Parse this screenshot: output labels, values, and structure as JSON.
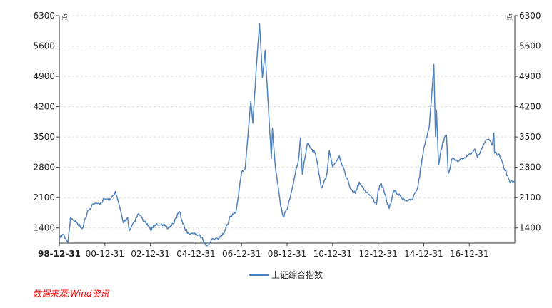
{
  "chart_data": {
    "type": "line",
    "unit_left": "点",
    "unit_right": "点",
    "yticks": [
      1400,
      2100,
      2800,
      3500,
      4200,
      4900,
      5600,
      6300
    ],
    "ylim": [
      1050,
      6300
    ],
    "xlim": [
      "1998-12-31",
      "2018-12-31"
    ],
    "xticks": [
      {
        "date": "1998-12-31",
        "label": "98-12-31",
        "bold": true
      },
      {
        "date": "2000-12-31",
        "label": "00-12-31"
      },
      {
        "date": "2002-12-31",
        "label": "02-12-31"
      },
      {
        "date": "2004-12-31",
        "label": "04-12-31"
      },
      {
        "date": "2006-12-31",
        "label": "06-12-31"
      },
      {
        "date": "2008-12-31",
        "label": "08-12-31"
      },
      {
        "date": "2010-12-31",
        "label": "10-12-31"
      },
      {
        "date": "2012-12-31",
        "label": "12-12-31"
      },
      {
        "date": "2014-12-31",
        "label": "14-12-31"
      },
      {
        "date": "2016-12-31",
        "label": "16-12-31"
      }
    ],
    "grid": "horizontal-dashed",
    "legend_position": "bottom-center",
    "source": "数据来源:Wind资讯",
    "series": [
      {
        "name": "上证综合指数",
        "color": "#4f81bd",
        "points": [
          [
            "1998-12-31",
            1147
          ],
          [
            "1999-02-28",
            1250
          ],
          [
            "1999-04-15",
            1150
          ],
          [
            "1999-05-18",
            1060
          ],
          [
            "1999-06-30",
            1650
          ],
          [
            "1999-09-30",
            1530
          ],
          [
            "1999-12-31",
            1380
          ],
          [
            "2000-03-31",
            1800
          ],
          [
            "2000-06-30",
            1960
          ],
          [
            "2000-09-30",
            1960
          ],
          [
            "2000-12-31",
            2070
          ],
          [
            "2001-03-31",
            2050
          ],
          [
            "2001-06-14",
            2240
          ],
          [
            "2001-08-31",
            1850
          ],
          [
            "2001-10-22",
            1520
          ],
          [
            "2001-12-31",
            1640
          ],
          [
            "2002-01-28",
            1340
          ],
          [
            "2002-03-31",
            1520
          ],
          [
            "2002-06-25",
            1730
          ],
          [
            "2002-09-30",
            1550
          ],
          [
            "2002-12-31",
            1360
          ],
          [
            "2003-03-31",
            1480
          ],
          [
            "2003-06-30",
            1490
          ],
          [
            "2003-09-30",
            1380
          ],
          [
            "2003-12-31",
            1500
          ],
          [
            "2004-04-07",
            1780
          ],
          [
            "2004-06-30",
            1400
          ],
          [
            "2004-09-13",
            1260
          ],
          [
            "2004-12-31",
            1270
          ],
          [
            "2005-03-31",
            1180
          ],
          [
            "2005-06-06",
            998
          ],
          [
            "2005-09-30",
            1150
          ],
          [
            "2005-12-31",
            1160
          ],
          [
            "2006-03-31",
            1300
          ],
          [
            "2006-06-30",
            1670
          ],
          [
            "2006-09-30",
            1750
          ],
          [
            "2006-12-31",
            2675
          ],
          [
            "2007-02-27",
            2770
          ],
          [
            "2007-05-29",
            4330
          ],
          [
            "2007-06-30",
            3820
          ],
          [
            "2007-08-31",
            5220
          ],
          [
            "2007-10-16",
            6124
          ],
          [
            "2007-11-30",
            4870
          ],
          [
            "2008-01-14",
            5500
          ],
          [
            "2008-02-29",
            4350
          ],
          [
            "2008-04-22",
            3000
          ],
          [
            "2008-05-10",
            3700
          ],
          [
            "2008-06-30",
            2740
          ],
          [
            "2008-09-18",
            1900
          ],
          [
            "2008-10-28",
            1664
          ],
          [
            "2008-12-31",
            1820
          ],
          [
            "2009-03-31",
            2370
          ],
          [
            "2009-06-30",
            2960
          ],
          [
            "2009-08-04",
            3478
          ],
          [
            "2009-09-01",
            2640
          ],
          [
            "2009-11-24",
            3360
          ],
          [
            "2009-12-31",
            3277
          ],
          [
            "2010-03-31",
            3110
          ],
          [
            "2010-07-02",
            2320
          ],
          [
            "2010-09-30",
            2650
          ],
          [
            "2010-11-08",
            3186
          ],
          [
            "2010-12-31",
            2808
          ],
          [
            "2011-04-18",
            3067
          ],
          [
            "2011-06-30",
            2760
          ],
          [
            "2011-09-30",
            2360
          ],
          [
            "2011-12-31",
            2199
          ],
          [
            "2012-03-02",
            2460
          ],
          [
            "2012-06-30",
            2225
          ],
          [
            "2012-09-30",
            2086
          ],
          [
            "2012-12-04",
            1950
          ],
          [
            "2012-12-31",
            2269
          ],
          [
            "2013-02-18",
            2430
          ],
          [
            "2013-06-25",
            1850
          ],
          [
            "2013-09-12",
            2270
          ],
          [
            "2013-12-31",
            2116
          ],
          [
            "2014-03-31",
            2030
          ],
          [
            "2014-06-30",
            2048
          ],
          [
            "2014-09-30",
            2364
          ],
          [
            "2014-12-31",
            3234
          ],
          [
            "2015-03-31",
            3748
          ],
          [
            "2015-06-12",
            5178
          ],
          [
            "2015-07-08",
            3507
          ],
          [
            "2015-07-24",
            4124
          ],
          [
            "2015-08-26",
            2850
          ],
          [
            "2015-10-31",
            3382
          ],
          [
            "2015-12-31",
            3539
          ],
          [
            "2016-01-28",
            2655
          ],
          [
            "2016-03-31",
            3003
          ],
          [
            "2016-06-30",
            2930
          ],
          [
            "2016-09-30",
            3005
          ],
          [
            "2016-12-31",
            3104
          ],
          [
            "2017-03-31",
            3223
          ],
          [
            "2017-05-11",
            3022
          ],
          [
            "2017-08-31",
            3360
          ],
          [
            "2017-11-13",
            3447
          ],
          [
            "2017-12-31",
            3307
          ],
          [
            "2018-01-29",
            3587
          ],
          [
            "2018-02-09",
            3129
          ],
          [
            "2018-04-30",
            3082
          ],
          [
            "2018-06-30",
            2847
          ],
          [
            "2018-10-18",
            2449
          ],
          [
            "2018-12-31",
            2494
          ]
        ]
      }
    ]
  }
}
